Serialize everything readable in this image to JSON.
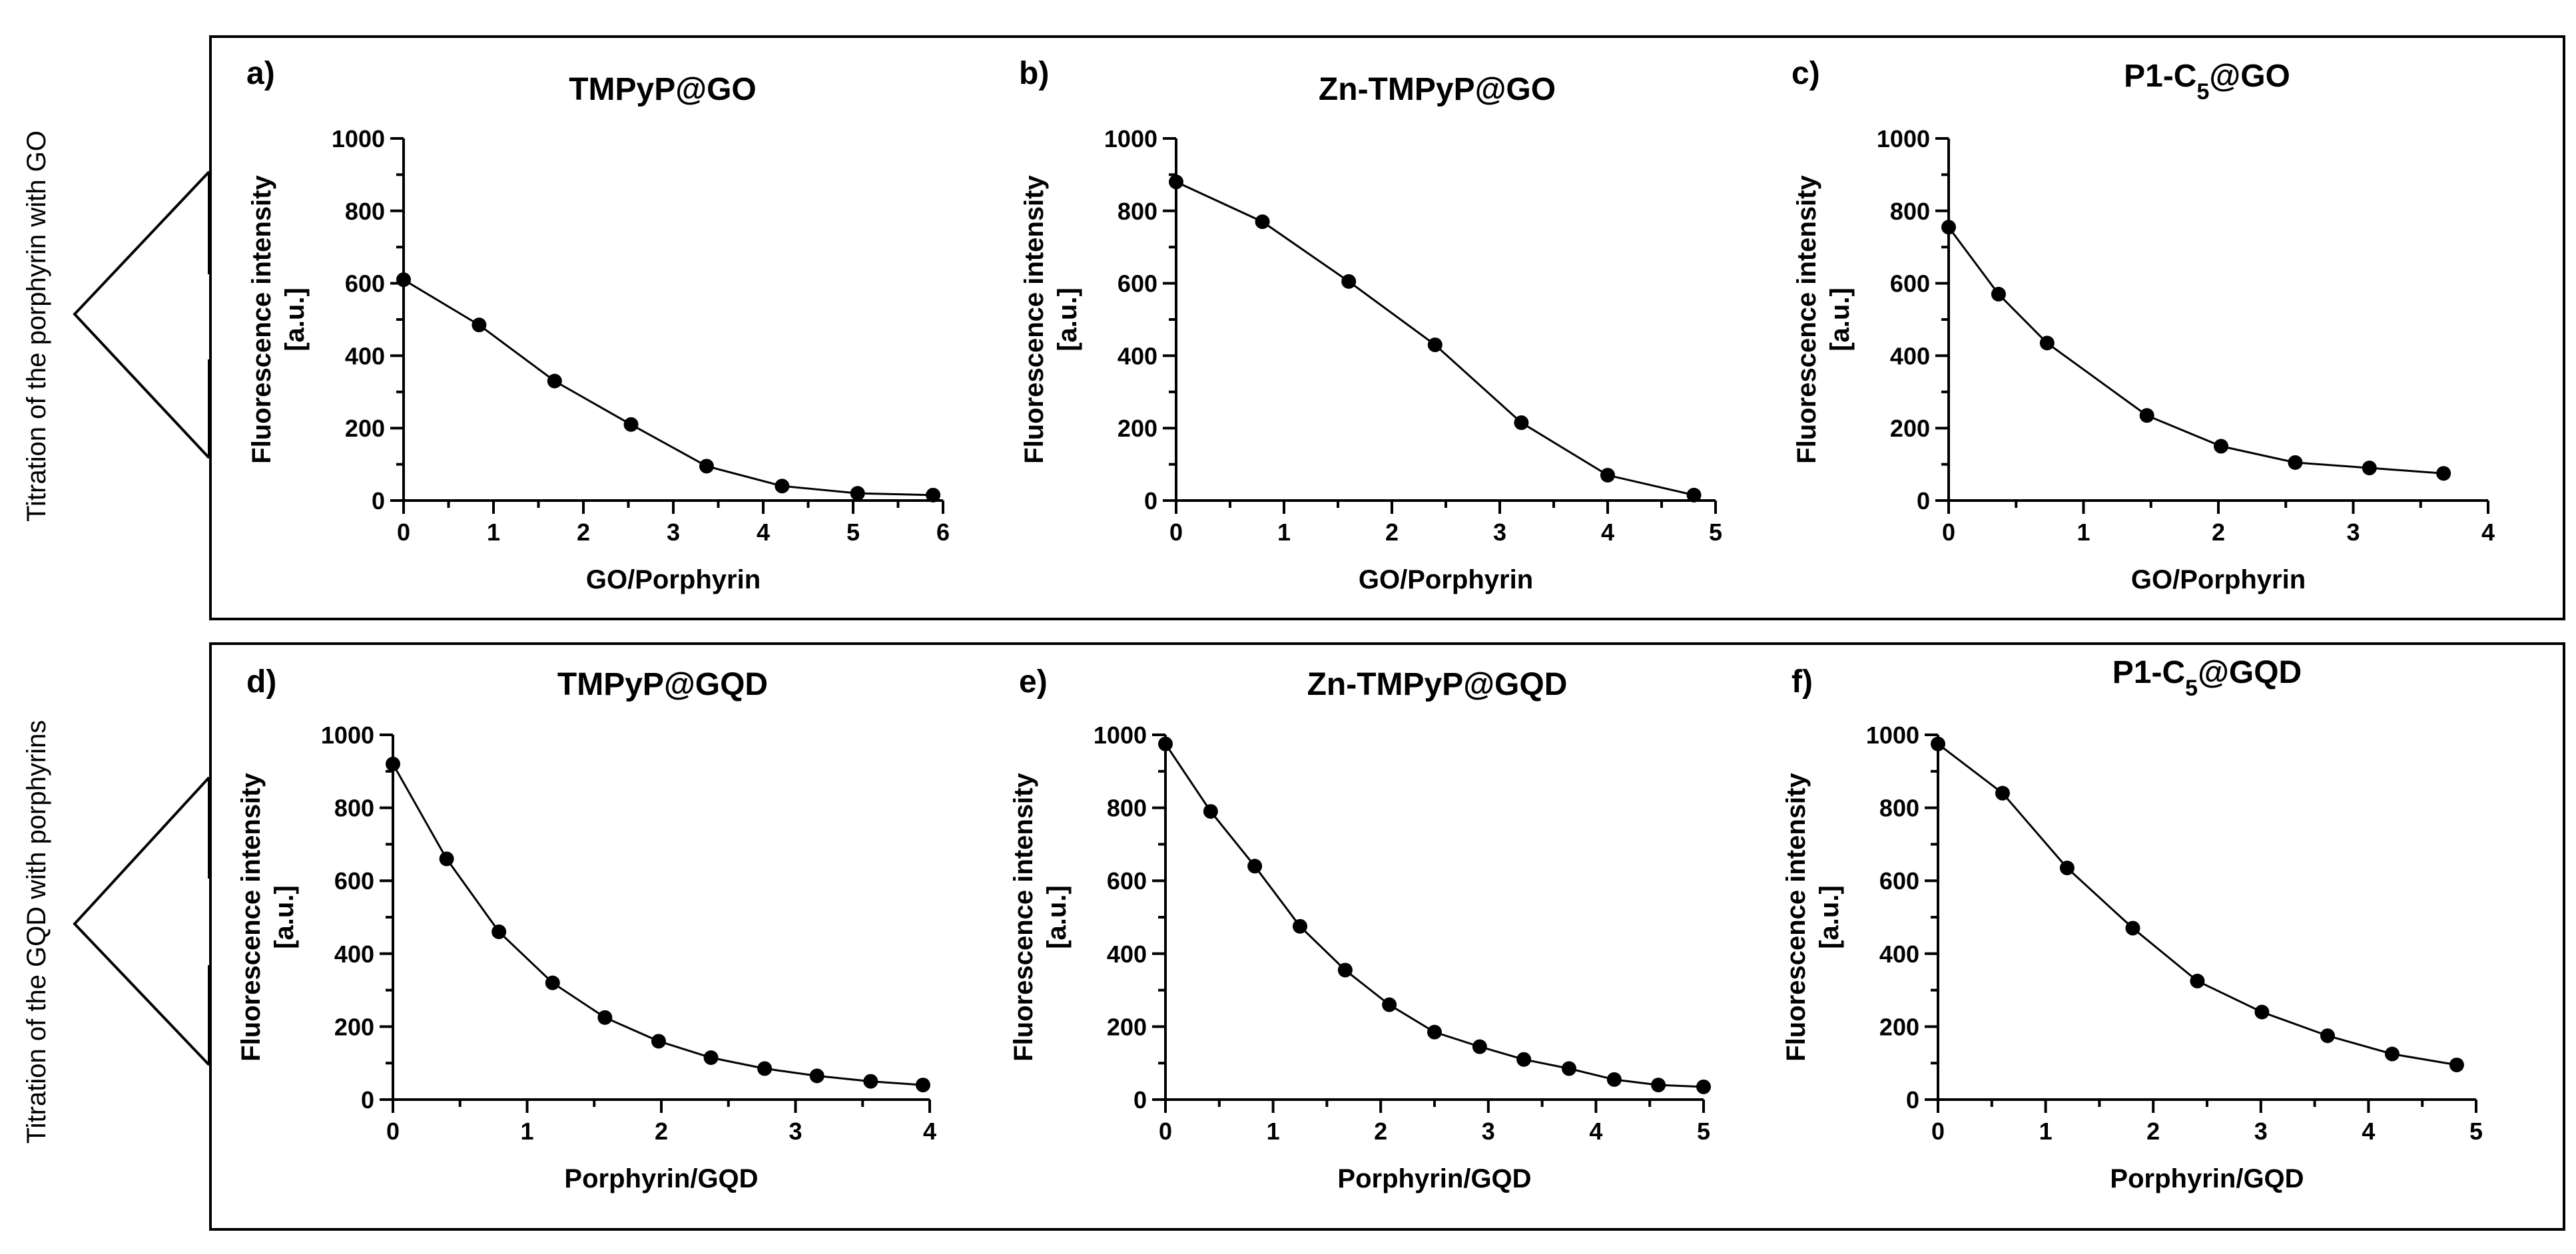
{
  "rows": [
    {
      "side_label": "Titration of the porphyrin with GO"
    },
    {
      "side_label": "Titration of the GQD with porphyrins"
    }
  ],
  "chart_data": [
    {
      "panel": "a)",
      "type": "line",
      "title": "TMPyP@GO",
      "title_sub": null,
      "xlabel": "GO/Porphyrin",
      "ylabel": [
        "Fluorescence intensity",
        "[a.u.]"
      ],
      "xlim": [
        0,
        6
      ],
      "ylim": [
        0,
        1000
      ],
      "xticks": [
        0,
        1,
        2,
        3,
        4,
        5,
        6
      ],
      "yticks": [
        0,
        200,
        400,
        600,
        800,
        1000
      ],
      "x": [
        0,
        0.84,
        1.68,
        2.53,
        3.37,
        4.21,
        5.05,
        5.89
      ],
      "y": [
        610,
        485,
        330,
        210,
        95,
        40,
        20,
        15
      ]
    },
    {
      "panel": "b)",
      "type": "line",
      "title": "Zn-TMPyP@GO",
      "title_sub": null,
      "xlabel": "GO/Porphyrin",
      "ylabel": [
        "Fluorescence intensity",
        "[a.u.]"
      ],
      "xlim": [
        0,
        5
      ],
      "ylim": [
        0,
        1000
      ],
      "xticks": [
        0,
        1,
        2,
        3,
        4,
        5
      ],
      "yticks": [
        0,
        200,
        400,
        600,
        800,
        1000
      ],
      "x": [
        0,
        0.8,
        1.6,
        2.4,
        3.2,
        4.0,
        4.8
      ],
      "y": [
        880,
        770,
        605,
        430,
        215,
        70,
        15
      ]
    },
    {
      "panel": "c)",
      "type": "line",
      "title": "P1-C",
      "title_sub": "5",
      "title_suffix": "@GO",
      "xlabel": "GO/Porphyrin",
      "ylabel": [
        "Fluorescence intensity",
        "[a.u.]"
      ],
      "xlim": [
        0,
        4
      ],
      "ylim": [
        0,
        1000
      ],
      "xticks": [
        0,
        1,
        2,
        3,
        4
      ],
      "yticks": [
        0,
        200,
        400,
        600,
        800,
        1000
      ],
      "x": [
        0,
        0.37,
        0.73,
        1.47,
        2.02,
        2.57,
        3.12,
        3.67
      ],
      "y": [
        755,
        570,
        435,
        235,
        150,
        105,
        90,
        75
      ]
    },
    {
      "panel": "d)",
      "type": "line",
      "title": "TMPyP@GQD",
      "title_sub": null,
      "xlabel": "Porphyrin/GQD",
      "ylabel": [
        "Fluorescence intensity",
        "[a.u.]"
      ],
      "xlim": [
        0,
        4
      ],
      "ylim": [
        0,
        1000
      ],
      "xticks": [
        0,
        1,
        2,
        3,
        4
      ],
      "yticks": [
        0,
        200,
        400,
        600,
        800,
        1000
      ],
      "x": [
        0,
        0.4,
        0.79,
        1.19,
        1.58,
        1.98,
        2.37,
        2.77,
        3.16,
        3.56,
        3.95
      ],
      "y": [
        920,
        660,
        460,
        320,
        225,
        160,
        115,
        85,
        65,
        50,
        40
      ]
    },
    {
      "panel": "e)",
      "type": "line",
      "title": "Zn-TMPyP@GQD",
      "title_sub": null,
      "xlabel": "Porphyrin/GQD",
      "ylabel": [
        "Fluorescence intensity",
        "[a.u.]"
      ],
      "xlim": [
        0,
        5
      ],
      "ylim": [
        0,
        1000
      ],
      "xticks": [
        0,
        1,
        2,
        3,
        4,
        5
      ],
      "yticks": [
        0,
        200,
        400,
        600,
        800,
        1000
      ],
      "x": [
        0,
        0.42,
        0.83,
        1.25,
        1.67,
        2.08,
        2.5,
        2.92,
        3.33,
        3.75,
        4.17,
        4.58,
        5.0
      ],
      "y": [
        975,
        790,
        640,
        475,
        355,
        260,
        185,
        145,
        110,
        85,
        55,
        40,
        35
      ]
    },
    {
      "panel": "f)",
      "type": "line",
      "title": "P1-C",
      "title_sub": "5",
      "title_suffix": "@GQD",
      "xlabel": "Porphyrin/GQD",
      "ylabel": [
        "Fluorescence intensity",
        "[a.u.]"
      ],
      "xlim": [
        0,
        5
      ],
      "ylim": [
        0,
        1000
      ],
      "xticks": [
        0,
        1,
        2,
        3,
        4,
        5
      ],
      "yticks": [
        0,
        200,
        400,
        600,
        800,
        1000
      ],
      "x": [
        0,
        0.6,
        1.2,
        1.81,
        2.41,
        3.01,
        3.62,
        4.22,
        4.82
      ],
      "y": [
        975,
        840,
        635,
        470,
        325,
        240,
        175,
        125,
        95
      ]
    }
  ]
}
